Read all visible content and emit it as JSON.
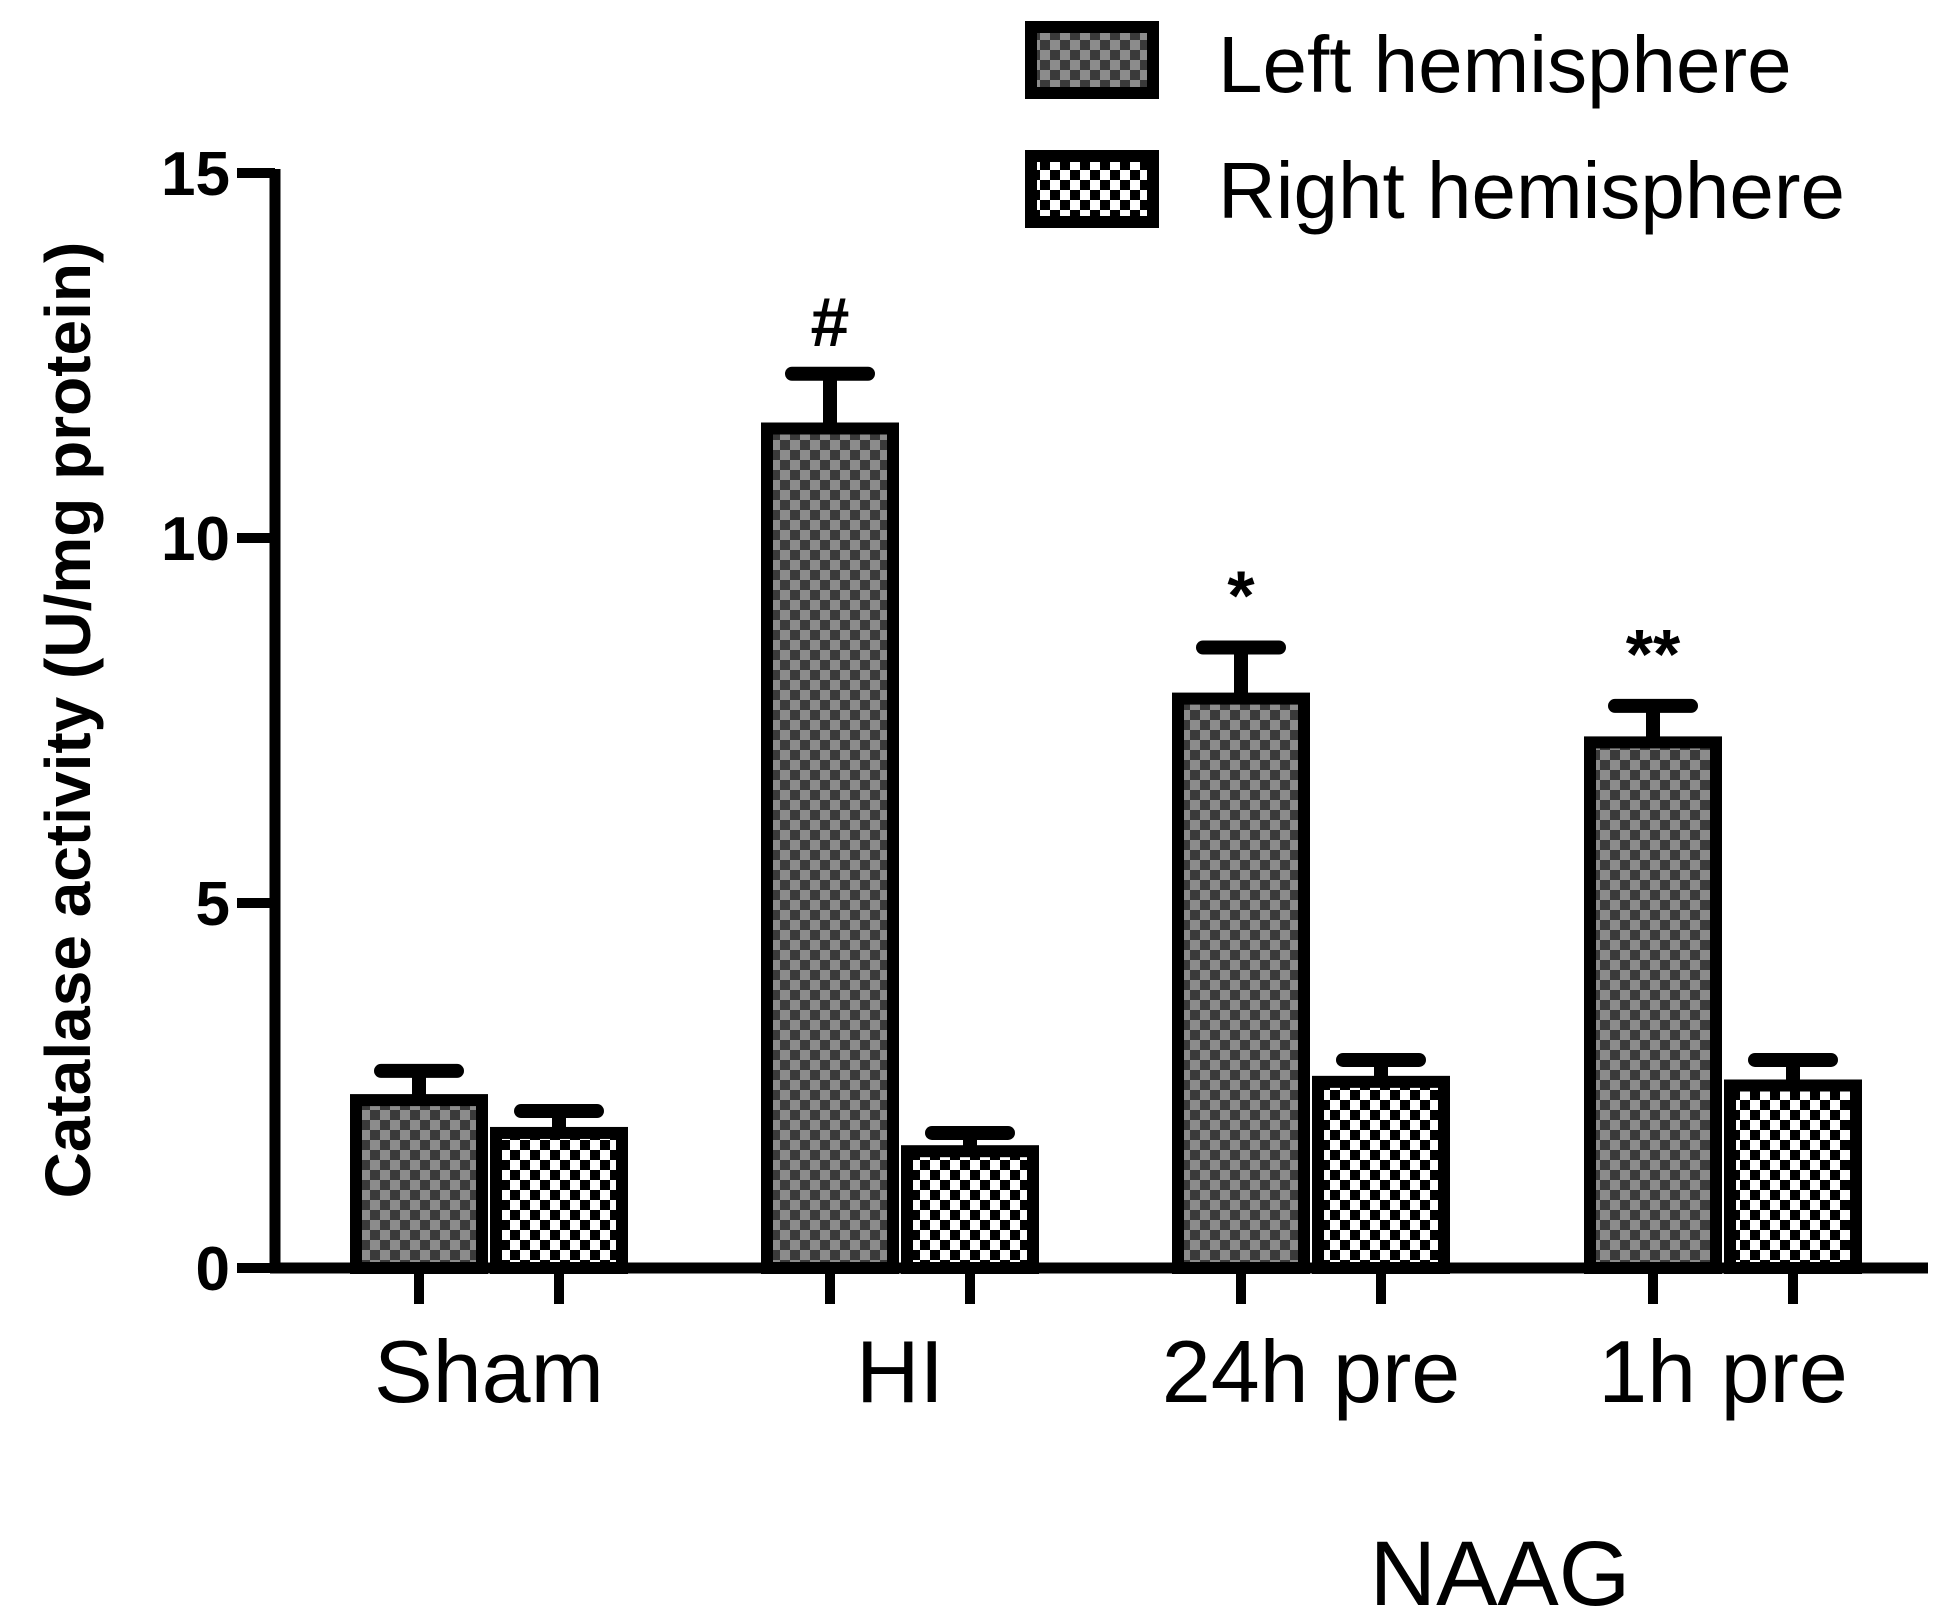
{
  "chart_data": {
    "type": "bar",
    "ylabel": "Catalase activity (U/mg protein)",
    "ylim": [
      0,
      15
    ],
    "yticks": [
      0,
      5,
      10,
      15
    ],
    "categories": [
      "Sham",
      "HI",
      "24h pre",
      "1h pre"
    ],
    "group_label": "NAAG",
    "series": [
      {
        "name": "Left hemisphere",
        "pattern": "dark-checker",
        "values": [
          2.3,
          11.5,
          7.8,
          7.2
        ],
        "errors": [
          0.4,
          0.75,
          0.7,
          0.5
        ],
        "annotations": [
          "",
          "#",
          "*",
          "**"
        ]
      },
      {
        "name": "Right hemisphere",
        "pattern": "light-checker",
        "values": [
          1.85,
          1.6,
          2.55,
          2.5
        ],
        "errors": [
          0.3,
          0.25,
          0.3,
          0.35
        ],
        "annotations": [
          "",
          "",
          "",
          ""
        ]
      }
    ],
    "legend_position": "top-right",
    "grid": false,
    "colors": {
      "dark_checker_a": "#3a3a3a",
      "dark_checker_b": "#8c8c8c",
      "light_checker_a": "#000000",
      "light_checker_b": "#ffffff"
    }
  }
}
